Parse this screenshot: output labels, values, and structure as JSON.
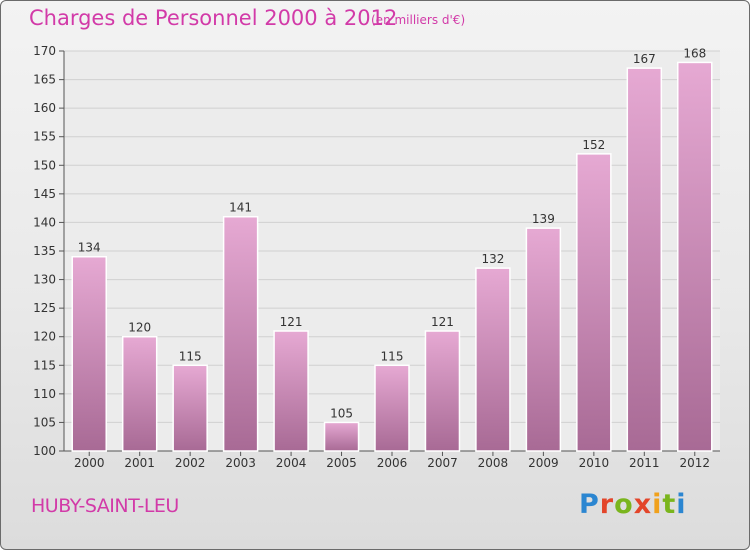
{
  "header": {
    "title": "Charges de Personnel 2000 à 2012",
    "unit_note": "(en milliers d'€)"
  },
  "footer": {
    "place": "HUBY-SAINT-LEU",
    "logo_text": "Proxiti",
    "logo_letter_colors": [
      "#2b86d1",
      "#e3452a",
      "#7ab51d",
      "#e3452a",
      "#f0a11c",
      "#7ab51d",
      "#2b86d1"
    ]
  },
  "colors": {
    "accent": "#d23aa8",
    "bar_top": "#e6a9d3",
    "bar_bottom": "#a86a95",
    "grid": "#d0d0d0"
  },
  "chart_data": {
    "type": "bar",
    "title": "Charges de Personnel 2000 à 2012",
    "subtitle": "(en milliers d'€)",
    "categories": [
      "2000",
      "2001",
      "2002",
      "2003",
      "2004",
      "2005",
      "2006",
      "2007",
      "2008",
      "2009",
      "2010",
      "2011",
      "2012"
    ],
    "values": [
      134,
      120,
      115,
      141,
      121,
      105,
      115,
      121,
      132,
      139,
      152,
      167,
      168
    ],
    "ylim": [
      100,
      170
    ],
    "yticks": [
      100,
      105,
      110,
      115,
      120,
      125,
      130,
      135,
      140,
      145,
      150,
      155,
      160,
      165,
      170
    ],
    "grid": true,
    "xlabel": "",
    "ylabel": ""
  }
}
